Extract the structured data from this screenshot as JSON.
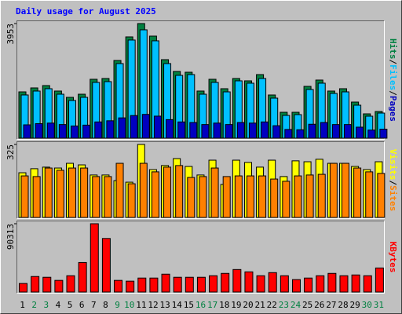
{
  "title": "Daily usage for August 2025",
  "chart_data": [
    {
      "type": "bar",
      "ylim": [
        0,
        3953
      ],
      "yticks": [
        3953
      ],
      "series": [
        {
          "name": "Hits",
          "color": "#008040",
          "values": [
            1597,
            1733,
            1814,
            1625,
            1408,
            1516,
            2031,
            2058,
            2680,
            3493,
            3953,
            3520,
            2708,
            2301,
            2274,
            1625,
            2031,
            1706,
            2058,
            1977,
            2193,
            1489,
            893,
            893,
            1787,
            2004,
            1625,
            1706,
            1245,
            839,
            920
          ]
        },
        {
          "name": "Files",
          "color": "#00c0ff",
          "values": [
            1490,
            1625,
            1706,
            1516,
            1299,
            1408,
            1923,
            1950,
            2572,
            3385,
            3737,
            3358,
            2572,
            2166,
            2193,
            1516,
            1923,
            1597,
            1977,
            1896,
            2058,
            1381,
            785,
            812,
            1679,
            1896,
            1543,
            1597,
            1137,
            758,
            866
          ]
        },
        {
          "name": "Pages",
          "color": "#0000c0",
          "values": [
            460,
            500,
            520,
            470,
            420,
            450,
            560,
            600,
            700,
            780,
            820,
            760,
            640,
            560,
            540,
            470,
            520,
            470,
            540,
            520,
            560,
            430,
            300,
            290,
            480,
            540,
            470,
            470,
            380,
            280,
            310
          ]
        }
      ]
    },
    {
      "type": "bar",
      "ylim": [
        0,
        325
      ],
      "yticks": [
        325
      ],
      "series": [
        {
          "name": "Visits",
          "color": "#ffff00",
          "values": [
            199,
            217,
            224,
            220,
            241,
            234,
            189,
            189,
            164,
            157,
            325,
            213,
            231,
            262,
            227,
            189,
            255,
            147,
            255,
            245,
            224,
            255,
            182,
            252,
            248,
            259,
            241,
            241,
            227,
            213,
            248
          ]
        },
        {
          "name": "Sites",
          "color": "#ff8000",
          "values": [
            185,
            182,
            220,
            210,
            220,
            220,
            182,
            182,
            241,
            150,
            241,
            203,
            224,
            231,
            178,
            182,
            220,
            182,
            185,
            185,
            185,
            171,
            161,
            185,
            189,
            192,
            241,
            241,
            220,
            203,
            196
          ]
        }
      ]
    },
    {
      "type": "bar",
      "ylim": [
        0,
        90313
      ],
      "yticks": [
        90313
      ],
      "categories": [
        "1",
        "2",
        "3",
        "4",
        "5",
        "6",
        "7",
        "8",
        "9",
        "10",
        "11",
        "12",
        "13",
        "14",
        "15",
        "16",
        "17",
        "18",
        "19",
        "20",
        "21",
        "22",
        "23",
        "24",
        "25",
        "26",
        "27",
        "28",
        "29",
        "30",
        "31"
      ],
      "category_colors": [
        "#000000",
        "#008040",
        "#008040",
        "#000000",
        "#000000",
        "#000000",
        "#000000",
        "#000000",
        "#008040",
        "#008040",
        "#000000",
        "#000000",
        "#000000",
        "#000000",
        "#000000",
        "#008040",
        "#008040",
        "#000000",
        "#000000",
        "#000000",
        "#000000",
        "#000000",
        "#008040",
        "#008040",
        "#000000",
        "#000000",
        "#000000",
        "#000000",
        "#000000",
        "#008040",
        "#008040"
      ],
      "series": [
        {
          "name": "KBytes",
          "color": "#ff0000",
          "values": [
            11289,
            20526,
            19500,
            15394,
            21552,
            39000,
            90313,
            70815,
            15394,
            14368,
            18473,
            18473,
            23605,
            19500,
            19500,
            19500,
            21552,
            24631,
            29763,
            26684,
            21552,
            25658,
            21552,
            16421,
            18473,
            21552,
            24631,
            21552,
            22579,
            21552,
            31815
          ]
        }
      ]
    }
  ]
}
